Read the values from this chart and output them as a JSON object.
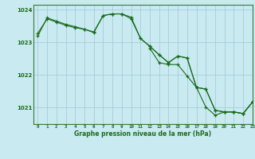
{
  "title": "Graphe pression niveau de la mer (hPa)",
  "background_color": "#c8eaf0",
  "grid_color": "#a0c8d8",
  "line_color": "#1a6b1a",
  "xlim": [
    -0.5,
    23
  ],
  "ylim": [
    1020.5,
    1024.15
  ],
  "yticks": [
    1021,
    1022,
    1023,
    1024
  ],
  "xticks": [
    0,
    1,
    2,
    3,
    4,
    5,
    6,
    7,
    8,
    9,
    10,
    11,
    12,
    13,
    14,
    15,
    16,
    17,
    18,
    19,
    20,
    21,
    22,
    23
  ],
  "series1": [
    1023.2,
    1023.75,
    1023.65,
    1023.55,
    1023.48,
    1023.4,
    1023.32,
    1023.82,
    1023.87,
    1023.87,
    1023.77,
    1023.12,
    1022.88,
    1022.62,
    1022.38,
    1022.58,
    1022.52,
    1021.62,
    1021.57,
    1020.92,
    1020.87,
    1020.87,
    1020.82,
    1021.17
  ],
  "series2": [
    1023.28,
    1023.72,
    1023.62,
    1023.52,
    1023.45,
    1023.4,
    1023.3,
    1023.82,
    1023.87,
    1023.87,
    1023.72,
    1023.12,
    1022.88,
    1022.62,
    1022.38,
    1022.58,
    1022.52,
    1021.62,
    1021.57,
    1020.92,
    1020.87,
    1020.87,
    1020.82,
    1021.17
  ],
  "series3": [
    null,
    null,
    null,
    null,
    null,
    null,
    null,
    null,
    null,
    null,
    null,
    null,
    1022.82,
    1022.38,
    1022.32,
    1022.32,
    1021.97,
    1021.62,
    1021.02,
    1020.77,
    1020.87,
    1020.87,
    1020.82,
    1021.17
  ]
}
